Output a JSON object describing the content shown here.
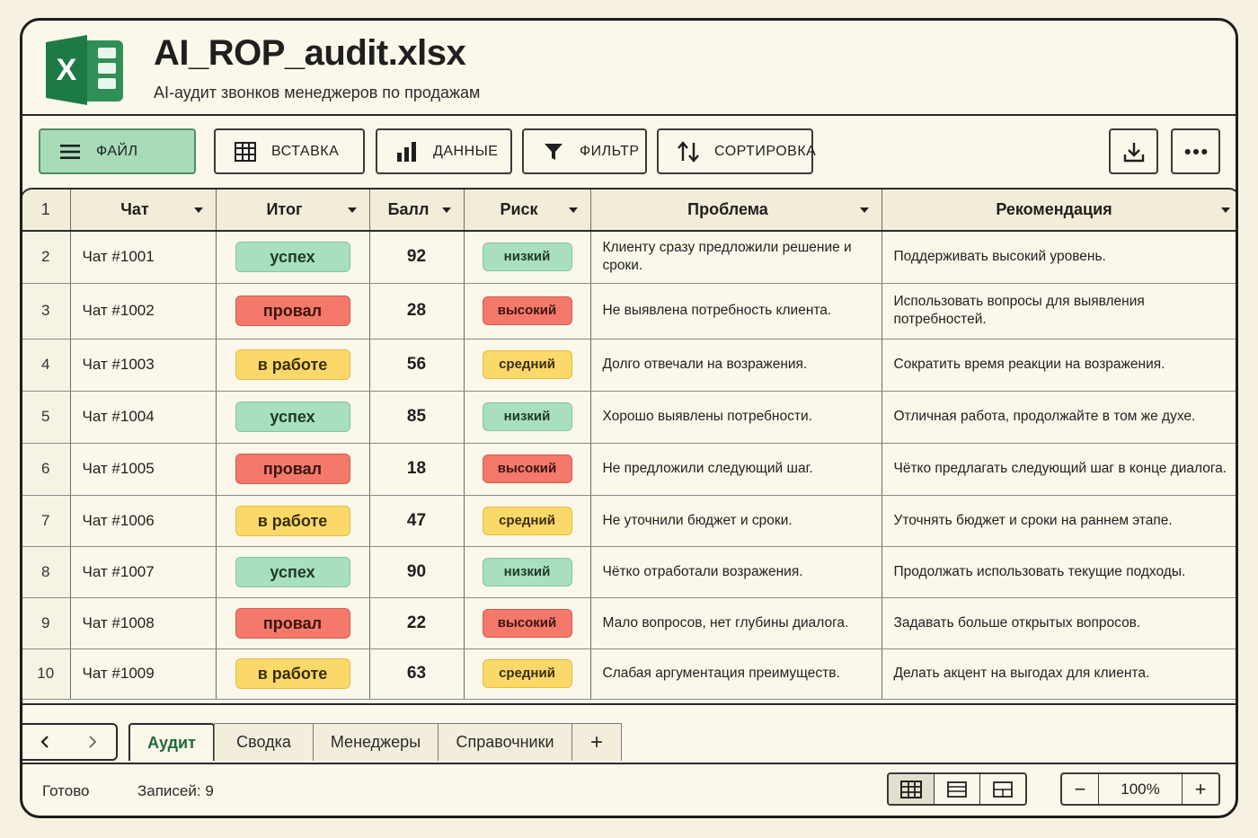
{
  "header": {
    "title": "AI_ROP_audit.xlsx",
    "subtitle": "AI-аудит звонков менеджеров по продажам",
    "logo_letter": "X",
    "logo_color": "#1e7a45"
  },
  "toolbar": {
    "file": "ФАЙЛ",
    "insert": "ВСТАВКА",
    "data": "ДАННЫЕ",
    "filter": "ФИЛЬТР",
    "sort": "СОРТИРОВКА"
  },
  "grid": {
    "header_row_number": "1",
    "columns": [
      "Чат",
      "Итог",
      "Балл",
      "Риск",
      "Проблема",
      "Рекомендация"
    ],
    "rows": [
      {
        "n": "2",
        "chat": "Чат #1001",
        "result": "успех",
        "result_color": "green",
        "score": "92",
        "risk": "низкий",
        "risk_color": "green",
        "problem": "Клиенту сразу предложили решение и сроки.",
        "rec": "Поддерживать высокий уровень."
      },
      {
        "n": "3",
        "chat": "Чат #1002",
        "result": "провал",
        "result_color": "red",
        "score": "28",
        "risk": "высокий",
        "risk_color": "red",
        "problem": "Не выявлена потребность клиента.",
        "rec": "Использовать вопросы для выявления потребностей."
      },
      {
        "n": "4",
        "chat": "Чат #1003",
        "result": "в работе",
        "result_color": "yellow",
        "score": "56",
        "risk": "средний",
        "risk_color": "yellow",
        "problem": "Долго отвечали на возражения.",
        "rec": "Сократить время реакции на возражения."
      },
      {
        "n": "5",
        "chat": "Чат #1004",
        "result": "успех",
        "result_color": "green",
        "score": "85",
        "risk": "низкий",
        "risk_color": "green",
        "problem": "Хорошо выявлены потребности.",
        "rec": "Отличная работа, продолжайте в том же духе."
      },
      {
        "n": "6",
        "chat": "Чат #1005",
        "result": "провал",
        "result_color": "red",
        "score": "18",
        "risk": "высокий",
        "risk_color": "red",
        "problem": "Не предложили следующий шаг.",
        "rec": "Чётко предлагать следующий шаг в конце диалога."
      },
      {
        "n": "7",
        "chat": "Чат #1006",
        "result": "в работе",
        "result_color": "yellow",
        "score": "47",
        "risk": "средний",
        "risk_color": "yellow",
        "problem": "Не уточнили бюджет и сроки.",
        "rec": "Уточнять бюджет и сроки на раннем этапе."
      },
      {
        "n": "8",
        "chat": "Чат #1007",
        "result": "успех",
        "result_color": "green",
        "score": "90",
        "risk": "низкий",
        "risk_color": "green",
        "problem": "Чётко отработали возражения.",
        "rec": "Продолжать использовать текущие подходы."
      },
      {
        "n": "9",
        "chat": "Чат #1008",
        "result": "провал",
        "result_color": "red",
        "score": "22",
        "risk": "высокий",
        "risk_color": "red",
        "problem": "Мало вопросов, нет глубины диалога.",
        "rec": "Задавать больше открытых вопросов."
      },
      {
        "n": "10",
        "chat": "Чат #1009",
        "result": "в работе",
        "result_color": "yellow",
        "score": "63",
        "risk": "средний",
        "risk_color": "yellow",
        "problem": "Слабая аргументация преимуществ.",
        "rec": "Делать акцент на выгодах для клиента."
      }
    ]
  },
  "sheets": {
    "tabs": [
      "Аудит",
      "Сводка",
      "Менеджеры",
      "Справочники"
    ],
    "active": "Аудит",
    "add": "+"
  },
  "status": {
    "ready": "Готово",
    "records": "Записей: 9",
    "zoom": "100%",
    "zoom_minus": "−",
    "zoom_plus": "+"
  }
}
